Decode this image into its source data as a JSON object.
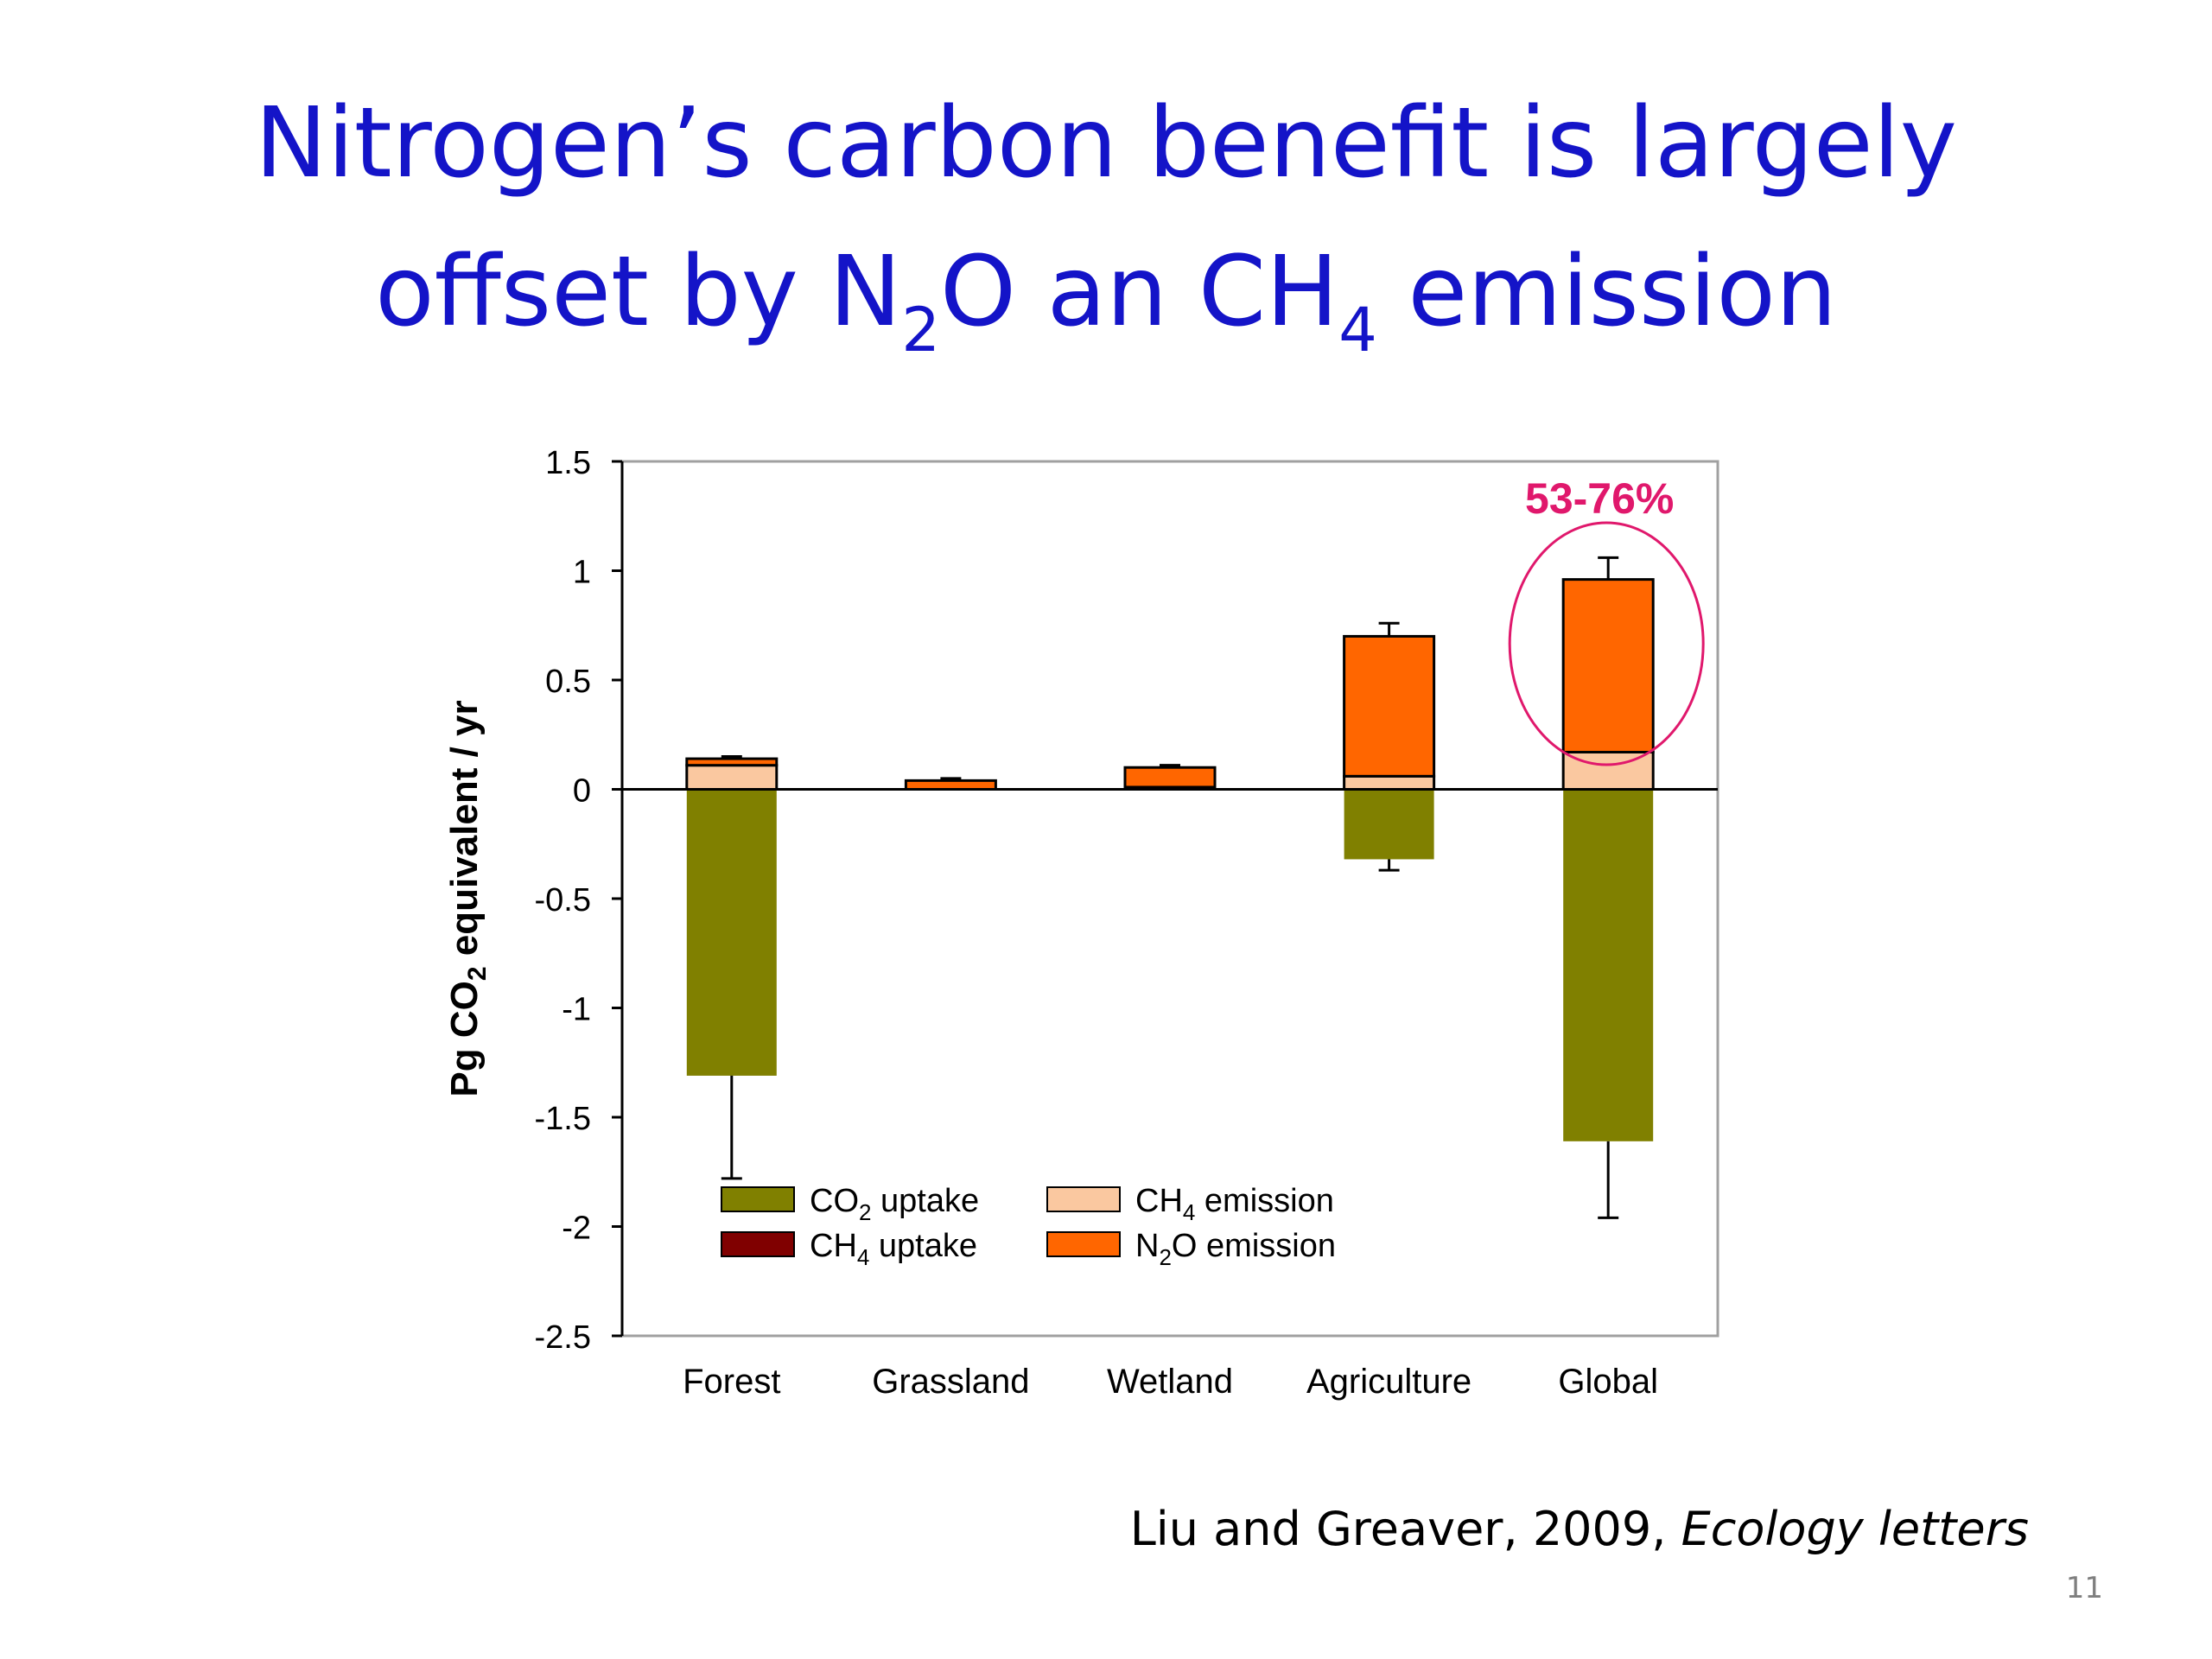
{
  "slide": {
    "title_line1": "Nitrogen’s carbon benefit is largely",
    "title_line2_a": "offset by N",
    "title_line2_sub1": "2",
    "title_line2_b": "O an CH",
    "title_line2_sub2": "4",
    "title_line2_c": " emission",
    "citation_main": "Liu and Greaver, 2009, ",
    "citation_journal": "Ecology letters",
    "page_number": "11"
  },
  "chart_data": {
    "type": "bar",
    "stacked": true,
    "categories": [
      "Forest",
      "Grassland",
      "Wetland",
      "Agriculture",
      "Global"
    ],
    "ylabel": {
      "prefix": "Pg CO",
      "sub": "2",
      "suffix": " equivalent / yr"
    },
    "ylim": [
      -2.5,
      1.5
    ],
    "yticks": [
      1.5,
      1,
      0.5,
      0,
      -0.5,
      -1,
      -1.5,
      -2,
      -2.5
    ],
    "grid": false,
    "legend_position": "lower-center",
    "series": [
      {
        "key": "co2_uptake",
        "name_parts": [
          "CO",
          "2",
          " uptake"
        ],
        "color": "#808000",
        "values": [
          -1.31,
          0,
          0,
          -0.32,
          -1.61
        ],
        "error": [
          0.47,
          0,
          0,
          0.05,
          0.35
        ]
      },
      {
        "key": "ch4_uptake",
        "name_parts": [
          "CH",
          "4",
          " uptake"
        ],
        "color": "#800000",
        "values": [
          0,
          0,
          0,
          0,
          0
        ],
        "error": [
          0,
          0,
          0,
          0,
          0
        ]
      },
      {
        "key": "ch4_emission",
        "name_parts": [
          "CH",
          "4",
          " emission"
        ],
        "color": "#fac8a0",
        "values": [
          0.11,
          0,
          0.01,
          0.06,
          0.17
        ],
        "error": [
          0.02,
          0,
          0.01,
          0.01,
          0.03
        ]
      },
      {
        "key": "n2o_emission",
        "name_parts": [
          "N",
          "2",
          "O emission"
        ],
        "color": "#ff6600",
        "values": [
          0.03,
          0.04,
          0.09,
          0.64,
          0.79
        ],
        "error": [
          0.01,
          0.01,
          0.01,
          0.06,
          0.1
        ]
      }
    ],
    "annotations": [
      {
        "text": "53-76%",
        "category": "Global",
        "color": "#e0186c"
      }
    ]
  }
}
